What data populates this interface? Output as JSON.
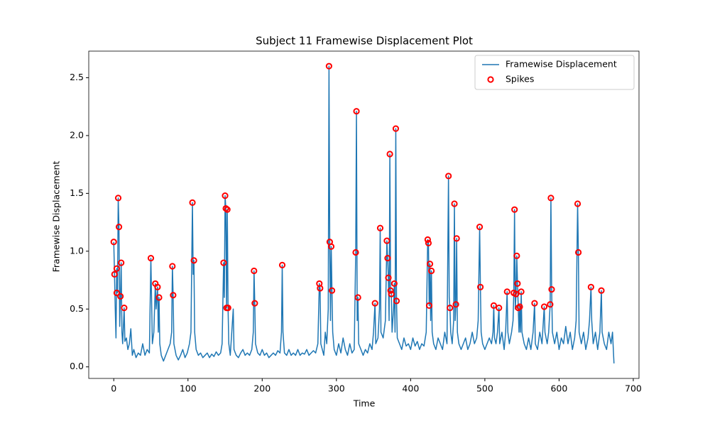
{
  "chart_data": {
    "type": "line",
    "title": "Subject 11 Framewise Displacement Plot",
    "x_label": "Time",
    "y_label": "Framewise Displacement",
    "xlim": [
      -33.7,
      707.7
    ],
    "ylim": [
      -0.1,
      2.73
    ],
    "xticks": [
      0,
      100,
      200,
      300,
      400,
      500,
      600,
      700
    ],
    "yticks": [
      {
        "value": 0,
        "label": "0.0"
      },
      0.5,
      {
        "value": 1,
        "label": "1.0"
      },
      1.5,
      {
        "value": 2,
        "label": "2.0"
      },
      2.5
    ],
    "grid": false,
    "legend": "upper right",
    "series": [
      {
        "name": "Framewise Displacement",
        "type": "line",
        "color": "#1f77b4",
        "x": [
          0,
          1,
          2,
          3,
          4,
          5,
          6,
          7,
          8,
          9,
          10,
          11,
          12,
          13,
          14,
          15,
          17,
          19,
          21,
          23,
          25,
          27,
          30,
          33,
          36,
          39,
          42,
          45,
          48,
          50,
          52,
          54,
          56,
          57,
          59,
          60,
          61,
          62,
          64,
          67,
          70,
          73,
          76,
          78,
          79,
          80,
          81,
          84,
          87,
          90,
          93,
          96,
          99,
          102,
          104,
          106,
          107,
          108,
          109,
          111,
          114,
          117,
          120,
          123,
          126,
          129,
          132,
          135,
          138,
          141,
          144,
          146,
          148,
          149,
          150,
          151,
          152,
          153,
          154,
          155,
          157,
          159,
          161,
          162,
          165,
          168,
          171,
          174,
          177,
          180,
          183,
          186,
          188,
          189,
          190,
          191,
          194,
          197,
          200,
          203,
          206,
          209,
          212,
          215,
          218,
          221,
          224,
          226,
          227,
          228,
          230,
          233,
          236,
          239,
          242,
          245,
          248,
          251,
          254,
          257,
          260,
          263,
          266,
          269,
          272,
          275,
          277,
          278,
          279,
          281,
          283,
          285,
          287,
          289,
          290,
          291,
          292,
          293,
          294,
          295,
          297,
          300,
          303,
          306,
          309,
          312,
          315,
          318,
          321,
          324,
          326,
          327,
          328,
          329,
          330,
          333,
          336,
          339,
          342,
          345,
          348,
          350,
          352,
          353,
          356,
          358,
          359,
          360,
          363,
          366,
          368,
          369,
          370,
          371,
          372,
          373,
          374,
          375,
          377,
          378,
          379,
          380,
          381,
          382,
          385,
          388,
          391,
          394,
          397,
          400,
          403,
          406,
          409,
          412,
          415,
          418,
          421,
          423,
          424,
          425,
          426,
          427,
          428,
          429,
          431,
          434,
          437,
          440,
          443,
          446,
          449,
          451,
          452,
          453,
          454,
          456,
          458,
          459,
          460,
          461,
          462,
          463,
          465,
          468,
          471,
          474,
          477,
          480,
          483,
          486,
          489,
          491,
          493,
          494,
          495,
          497,
          500,
          503,
          506,
          509,
          511,
          512,
          513,
          515,
          517,
          519,
          520,
          523,
          526,
          528,
          530,
          531,
          533,
          536,
          538,
          539,
          540,
          541,
          542,
          543,
          544,
          545,
          546,
          547,
          548,
          549,
          550,
          553,
          556,
          559,
          562,
          565,
          567,
          568,
          571,
          574,
          577,
          580,
          581,
          584,
          586,
          588,
          589,
          590,
          591,
          594,
          597,
          600,
          603,
          606,
          609,
          612,
          615,
          618,
          621,
          623,
          625,
          626,
          627,
          630,
          633,
          636,
          639,
          641,
          643,
          644,
          646,
          649,
          652,
          655,
          657,
          658,
          661,
          664,
          667,
          670,
          672,
          674
        ],
        "values": [
          1.08,
          0.8,
          0.5,
          0.25,
          0.85,
          0.64,
          1.46,
          1.21,
          0.35,
          0.61,
          0.9,
          0.3,
          0.2,
          0.35,
          0.51,
          0.22,
          0.25,
          0.15,
          0.2,
          0.33,
          0.1,
          0.15,
          0.08,
          0.12,
          0.1,
          0.2,
          0.1,
          0.15,
          0.12,
          0.94,
          0.2,
          0.3,
          0.72,
          0.5,
          0.69,
          0.3,
          0.6,
          0.2,
          0.1,
          0.05,
          0.1,
          0.15,
          0.2,
          0.3,
          0.87,
          0.62,
          0.2,
          0.1,
          0.06,
          0.1,
          0.15,
          0.08,
          0.12,
          0.2,
          0.3,
          1.42,
          0.8,
          0.92,
          0.3,
          0.15,
          0.1,
          0.12,
          0.08,
          0.1,
          0.12,
          0.08,
          0.11,
          0.09,
          0.13,
          0.1,
          0.12,
          0.2,
          0.9,
          0.6,
          1.48,
          1.37,
          0.51,
          1.36,
          0.51,
          0.2,
          0.1,
          0.3,
          0.5,
          0.15,
          0.1,
          0.08,
          0.12,
          0.15,
          0.1,
          0.12,
          0.1,
          0.15,
          0.3,
          0.83,
          0.55,
          0.2,
          0.12,
          0.1,
          0.15,
          0.1,
          0.12,
          0.08,
          0.1,
          0.12,
          0.1,
          0.14,
          0.12,
          0.3,
          0.88,
          0.3,
          0.12,
          0.1,
          0.15,
          0.1,
          0.12,
          0.1,
          0.15,
          0.1,
          0.12,
          0.11,
          0.15,
          0.1,
          0.12,
          0.14,
          0.12,
          0.2,
          0.72,
          0.68,
          0.2,
          0.15,
          0.1,
          0.3,
          0.2,
          0.5,
          2.6,
          1.08,
          0.4,
          1.04,
          0.66,
          0.3,
          0.15,
          0.1,
          0.2,
          0.12,
          0.25,
          0.15,
          0.1,
          0.2,
          0.12,
          0.15,
          0.99,
          2.21,
          0.4,
          0.6,
          0.2,
          0.15,
          0.1,
          0.15,
          0.12,
          0.2,
          0.15,
          0.3,
          0.55,
          0.2,
          0.25,
          0.5,
          1.2,
          0.3,
          0.25,
          0.4,
          1.09,
          0.94,
          0.77,
          0.4,
          1.84,
          0.66,
          0.63,
          0.3,
          0.5,
          0.72,
          0.3,
          2.06,
          0.57,
          0.25,
          0.2,
          0.15,
          0.25,
          0.18,
          0.2,
          0.15,
          0.25,
          0.18,
          0.22,
          0.15,
          0.2,
          0.18,
          0.3,
          1.1,
          1.07,
          0.53,
          0.89,
          0.4,
          0.83,
          0.3,
          0.2,
          0.15,
          0.25,
          0.2,
          0.15,
          0.3,
          0.2,
          1.65,
          0.6,
          0.51,
          0.3,
          0.2,
          0.4,
          1.41,
          0.4,
          0.54,
          1.11,
          0.3,
          0.2,
          0.15,
          0.2,
          0.25,
          0.15,
          0.2,
          0.3,
          0.2,
          0.25,
          0.4,
          1.21,
          0.69,
          0.3,
          0.2,
          0.15,
          0.2,
          0.25,
          0.2,
          0.3,
          0.53,
          0.25,
          0.2,
          0.3,
          0.51,
          0.2,
          0.3,
          0.15,
          0.3,
          0.65,
          0.3,
          0.2,
          0.3,
          0.4,
          0.64,
          1.36,
          0.5,
          0.63,
          0.96,
          0.72,
          0.51,
          0.3,
          0.52,
          0.3,
          0.65,
          0.3,
          0.2,
          0.15,
          0.25,
          0.15,
          0.3,
          0.55,
          0.2,
          0.15,
          0.3,
          0.2,
          0.52,
          0.3,
          0.2,
          0.3,
          0.54,
          1.46,
          0.67,
          0.3,
          0.2,
          0.3,
          0.15,
          0.25,
          0.2,
          0.35,
          0.2,
          0.3,
          0.15,
          0.25,
          0.4,
          1.41,
          0.99,
          0.3,
          0.2,
          0.3,
          0.15,
          0.25,
          0.4,
          0.69,
          0.4,
          0.2,
          0.3,
          0.15,
          0.3,
          0.66,
          0.3,
          0.2,
          0.15,
          0.3,
          0.2,
          0.3,
          0.03
        ]
      },
      {
        "name": "Spikes",
        "type": "scatter",
        "color": "red",
        "x": [
          0,
          1,
          4,
          4,
          6,
          7,
          9,
          10,
          14,
          50,
          56,
          59,
          61,
          79,
          80,
          106,
          108,
          148,
          150,
          151,
          153,
          152,
          154,
          189,
          190,
          227,
          277,
          278,
          290,
          291,
          293,
          294,
          327,
          326,
          329,
          352,
          359,
          368,
          369,
          370,
          372,
          373,
          374,
          378,
          380,
          381,
          423,
          424,
          425,
          426,
          428,
          451,
          453,
          459,
          461,
          462,
          493,
          494,
          512,
          519,
          530,
          539,
          540,
          542,
          543,
          544,
          545,
          547,
          549,
          567,
          580,
          588,
          589,
          590,
          625,
          626,
          643,
          657
        ],
        "values": [
          1.08,
          0.8,
          0.85,
          0.64,
          1.46,
          1.21,
          0.61,
          0.9,
          0.51,
          0.94,
          0.72,
          0.69,
          0.6,
          0.87,
          0.62,
          1.42,
          0.92,
          0.9,
          1.48,
          1.37,
          1.36,
          0.51,
          0.51,
          0.83,
          0.55,
          0.88,
          0.72,
          0.68,
          2.6,
          1.08,
          1.04,
          0.66,
          2.21,
          0.99,
          0.6,
          0.55,
          1.2,
          1.09,
          0.94,
          0.77,
          1.84,
          0.66,
          0.63,
          0.72,
          2.06,
          0.57,
          1.1,
          1.07,
          0.53,
          0.89,
          0.83,
          1.65,
          0.51,
          1.41,
          0.54,
          1.11,
          1.21,
          0.69,
          0.53,
          0.51,
          0.65,
          0.64,
          1.36,
          0.63,
          0.96,
          0.72,
          0.51,
          0.52,
          0.65,
          0.55,
          0.52,
          0.54,
          1.46,
          0.67,
          1.41,
          0.99,
          0.69,
          0.66
        ]
      }
    ]
  }
}
